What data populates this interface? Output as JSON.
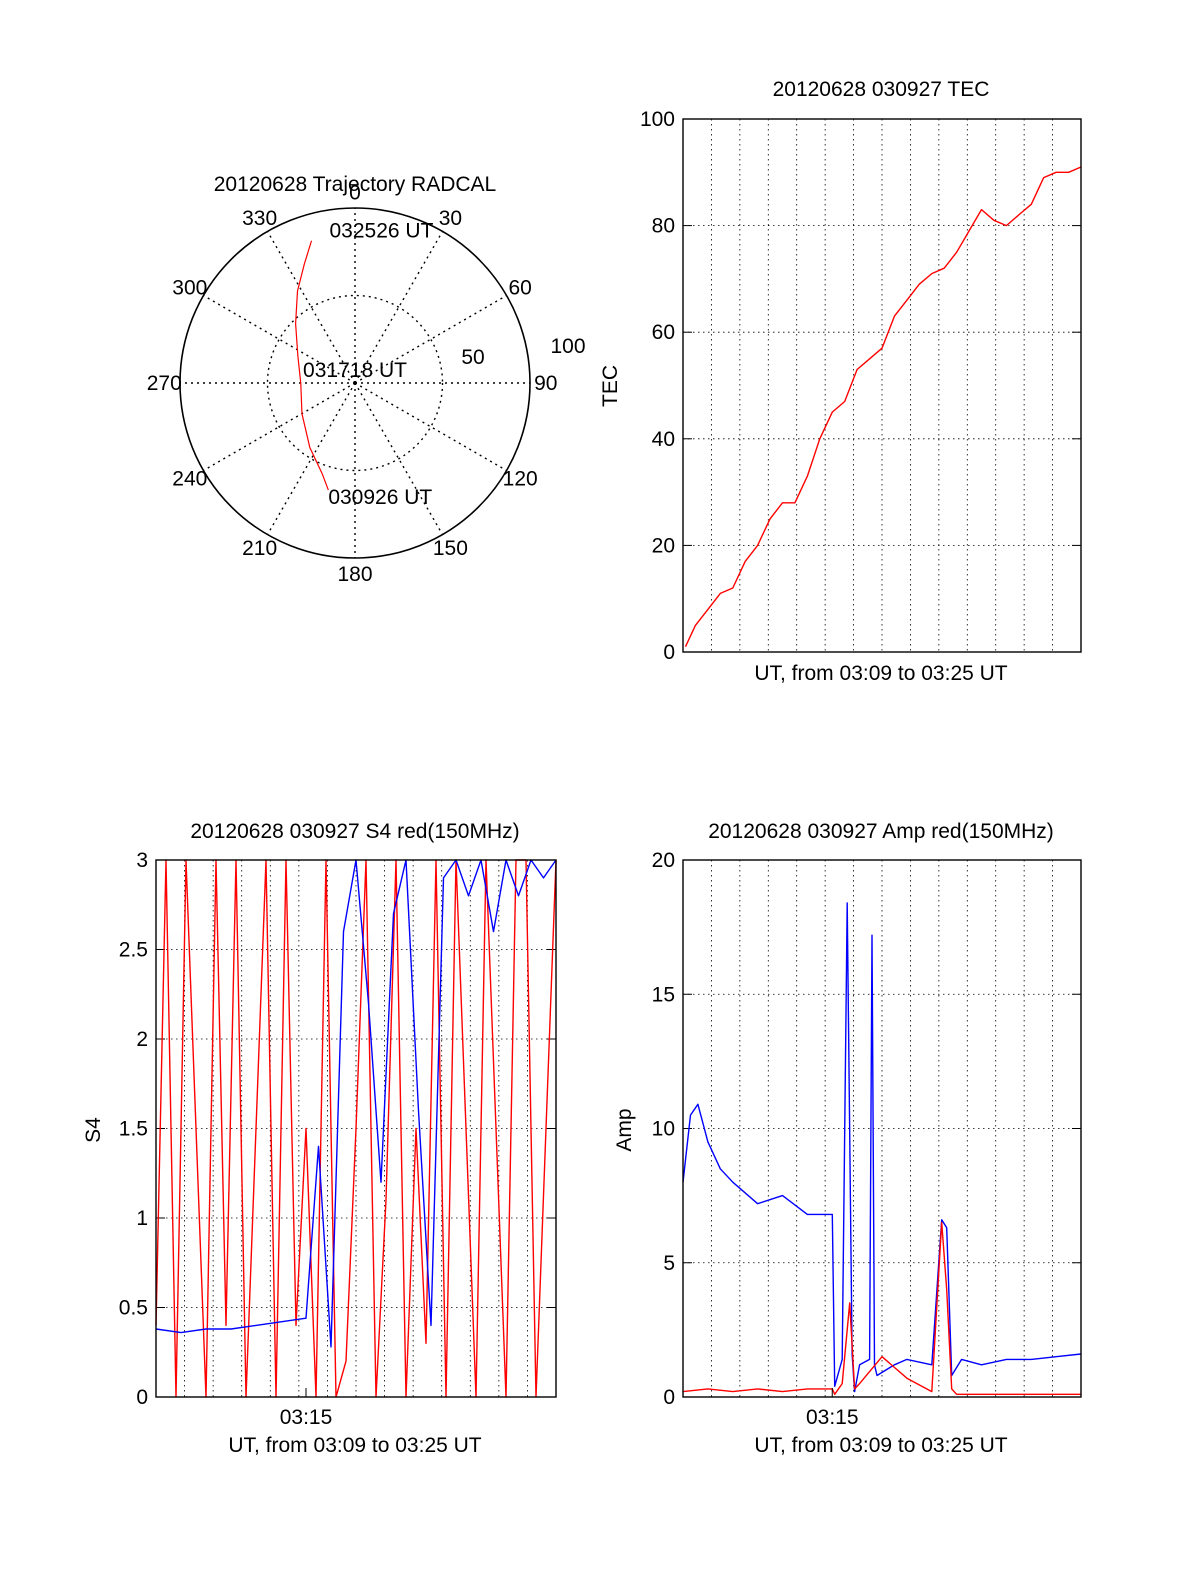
{
  "colors": {
    "red": "#ff0000",
    "blue": "#0000ff",
    "axis": "#000000",
    "grid": "#000000"
  },
  "chart_data": [
    {
      "id": "trajectory",
      "type": "polar",
      "title": "20120628 Trajectory RADCAL",
      "angle_labels": [
        "0",
        "30",
        "60",
        "90",
        "120",
        "150",
        "180",
        "210",
        "240",
        "270",
        "300",
        "330"
      ],
      "radius_labels": [
        "50",
        "100"
      ],
      "rmax": 100,
      "track": [
        {
          "az": 194,
          "r": 63
        },
        {
          "az": 200,
          "r": 55
        },
        {
          "az": 215,
          "r": 45
        },
        {
          "az": 240,
          "r": 35
        },
        {
          "az": 270,
          "r": 31
        },
        {
          "az": 295,
          "r": 36
        },
        {
          "az": 315,
          "r": 48
        },
        {
          "az": 328,
          "r": 62
        },
        {
          "az": 337,
          "r": 74
        },
        {
          "az": 343,
          "r": 85
        }
      ],
      "annotations": [
        {
          "text": "032526 UT",
          "az": 343,
          "r": 85
        },
        {
          "text": "031718 UT",
          "az": 0,
          "r": 0
        },
        {
          "text": "030926 UT",
          "az": 194,
          "r": 63
        }
      ]
    },
    {
      "id": "tec",
      "type": "line",
      "title": "20120628 030927 TEC",
      "xlabel": "UT, from 03:09 to 03:25 UT",
      "ylabel": "TEC",
      "xlim": [
        0,
        16
      ],
      "ylim": [
        0,
        100
      ],
      "yticks": [
        0,
        20,
        40,
        60,
        80,
        100
      ],
      "x_tick_labels": [],
      "grid": true,
      "series": [
        {
          "x": [
            0.1,
            0.5,
            1.0,
            1.5,
            2.0,
            2.5,
            3.0,
            3.5,
            4.0,
            4.5,
            5.0,
            5.5,
            6.0,
            6.5,
            7.0,
            7.5,
            8.0,
            8.5,
            9.0,
            9.5,
            10.0,
            10.5,
            11.0,
            11.5,
            12.0,
            12.5,
            13.0,
            13.5,
            14.0,
            14.5,
            15.0,
            15.5,
            16.0
          ],
          "y": [
            1,
            5,
            8,
            11,
            12,
            17,
            20,
            25,
            28,
            28,
            33,
            40,
            45,
            47,
            53,
            55,
            57,
            63,
            66,
            69,
            71,
            72,
            75,
            79,
            83,
            81,
            80,
            82,
            84,
            89,
            90,
            90,
            91
          ]
        }
      ]
    },
    {
      "id": "s4",
      "type": "line",
      "title": "20120628 030927 S4 red(150MHz)",
      "xlabel": "UT, from 03:09 to 03:25 UT",
      "ylabel": "S4",
      "xlim": [
        0,
        16
      ],
      "ylim": [
        0,
        3
      ],
      "yticks": [
        0,
        0.5,
        1,
        1.5,
        2,
        2.5,
        3
      ],
      "ytick_labels": [
        "0",
        "0.5",
        "1",
        "1.5",
        "2",
        "2.5",
        "3"
      ],
      "x_tick_labels": [
        {
          "x": 6,
          "label": "03:15"
        }
      ],
      "grid": true,
      "series": [
        {
          "color": "red",
          "x": [
            0.0,
            0.4,
            0.8,
            1.2,
            1.6,
            2.0,
            2.4,
            2.8,
            3.2,
            3.6,
            4.0,
            4.4,
            4.8,
            5.2,
            5.6,
            6.0,
            6.4,
            6.8,
            7.2,
            7.6,
            8.0,
            8.4,
            8.8,
            9.2,
            9.6,
            10.0,
            10.4,
            10.8,
            11.2,
            11.6,
            12.0,
            12.4,
            12.8,
            13.2,
            13.6,
            14.0,
            14.4,
            14.8,
            15.2,
            15.6,
            16.0
          ],
          "y": [
            0.4,
            3,
            0,
            3,
            1.5,
            0,
            3,
            0.4,
            3,
            0,
            1.5,
            3,
            0,
            3,
            0.4,
            1.5,
            0,
            3,
            0,
            0.2,
            1.5,
            3,
            0,
            1.1,
            3,
            0,
            1.5,
            0.3,
            3,
            0,
            3,
            1.5,
            0,
            3,
            1.5,
            0,
            3,
            3,
            0,
            1.5,
            3
          ]
        },
        {
          "color": "blue",
          "x": [
            0.0,
            1.0,
            2.0,
            3.0,
            4.0,
            5.0,
            6.0,
            6.5,
            7.0,
            7.5,
            8.0,
            8.5,
            9.0,
            9.5,
            10.0,
            10.5,
            11.0,
            11.5,
            12.0,
            12.5,
            13.0,
            13.5,
            14.0,
            14.5,
            15.0,
            15.5,
            16.0
          ],
          "y": [
            0.38,
            0.36,
            0.38,
            0.38,
            0.4,
            0.42,
            0.44,
            1.4,
            0.28,
            2.6,
            3.0,
            2.2,
            1.2,
            2.7,
            3.0,
            1.6,
            0.4,
            2.9,
            3.0,
            2.8,
            3.0,
            2.6,
            3.0,
            2.8,
            3.0,
            2.9,
            3.0
          ]
        }
      ]
    },
    {
      "id": "amp",
      "type": "line",
      "title": "20120628 030927 Amp red(150MHz)",
      "xlabel": "UT, from 03:09 to 03:25 UT",
      "ylabel": "Amp",
      "xlim": [
        0,
        16
      ],
      "ylim": [
        0,
        20
      ],
      "yticks": [
        0,
        5,
        10,
        15,
        20
      ],
      "x_tick_labels": [
        {
          "x": 6,
          "label": "03:15"
        }
      ],
      "grid": true,
      "series": [
        {
          "color": "blue",
          "x": [
            0.0,
            0.3,
            0.6,
            1.0,
            1.5,
            2.0,
            3.0,
            4.0,
            5.0,
            6.0,
            6.1,
            6.4,
            6.6,
            6.8,
            6.9,
            7.1,
            7.5,
            7.6,
            7.7,
            7.8,
            8.5,
            9.0,
            10.0,
            10.4,
            10.6,
            10.8,
            11.2,
            12.0,
            13.0,
            14.0,
            15.0,
            16.0
          ],
          "y": [
            8,
            10.5,
            10.9,
            9.5,
            8.5,
            8,
            7.2,
            7.5,
            6.8,
            6.8,
            0.4,
            1.4,
            18.4,
            1.6,
            0.2,
            1.2,
            1.4,
            17.2,
            1.2,
            0.8,
            1.2,
            1.4,
            1.2,
            6.6,
            6.3,
            0.8,
            1.4,
            1.2,
            1.4,
            1.4,
            1.5,
            1.6
          ]
        },
        {
          "color": "red",
          "x": [
            0.0,
            1.0,
            2.0,
            3.0,
            4.0,
            5.0,
            6.0,
            6.1,
            6.4,
            6.7,
            6.9,
            7.1,
            8.0,
            9.0,
            10.0,
            10.4,
            10.6,
            10.8,
            11.0,
            12.0,
            13.0,
            16.0
          ],
          "y": [
            0.2,
            0.3,
            0.2,
            0.3,
            0.2,
            0.3,
            0.3,
            0.1,
            0.5,
            3.5,
            0.3,
            0.5,
            1.5,
            0.7,
            0.2,
            6.5,
            4.0,
            0.3,
            0.1,
            0.1,
            0.1,
            0.1
          ]
        }
      ]
    }
  ]
}
